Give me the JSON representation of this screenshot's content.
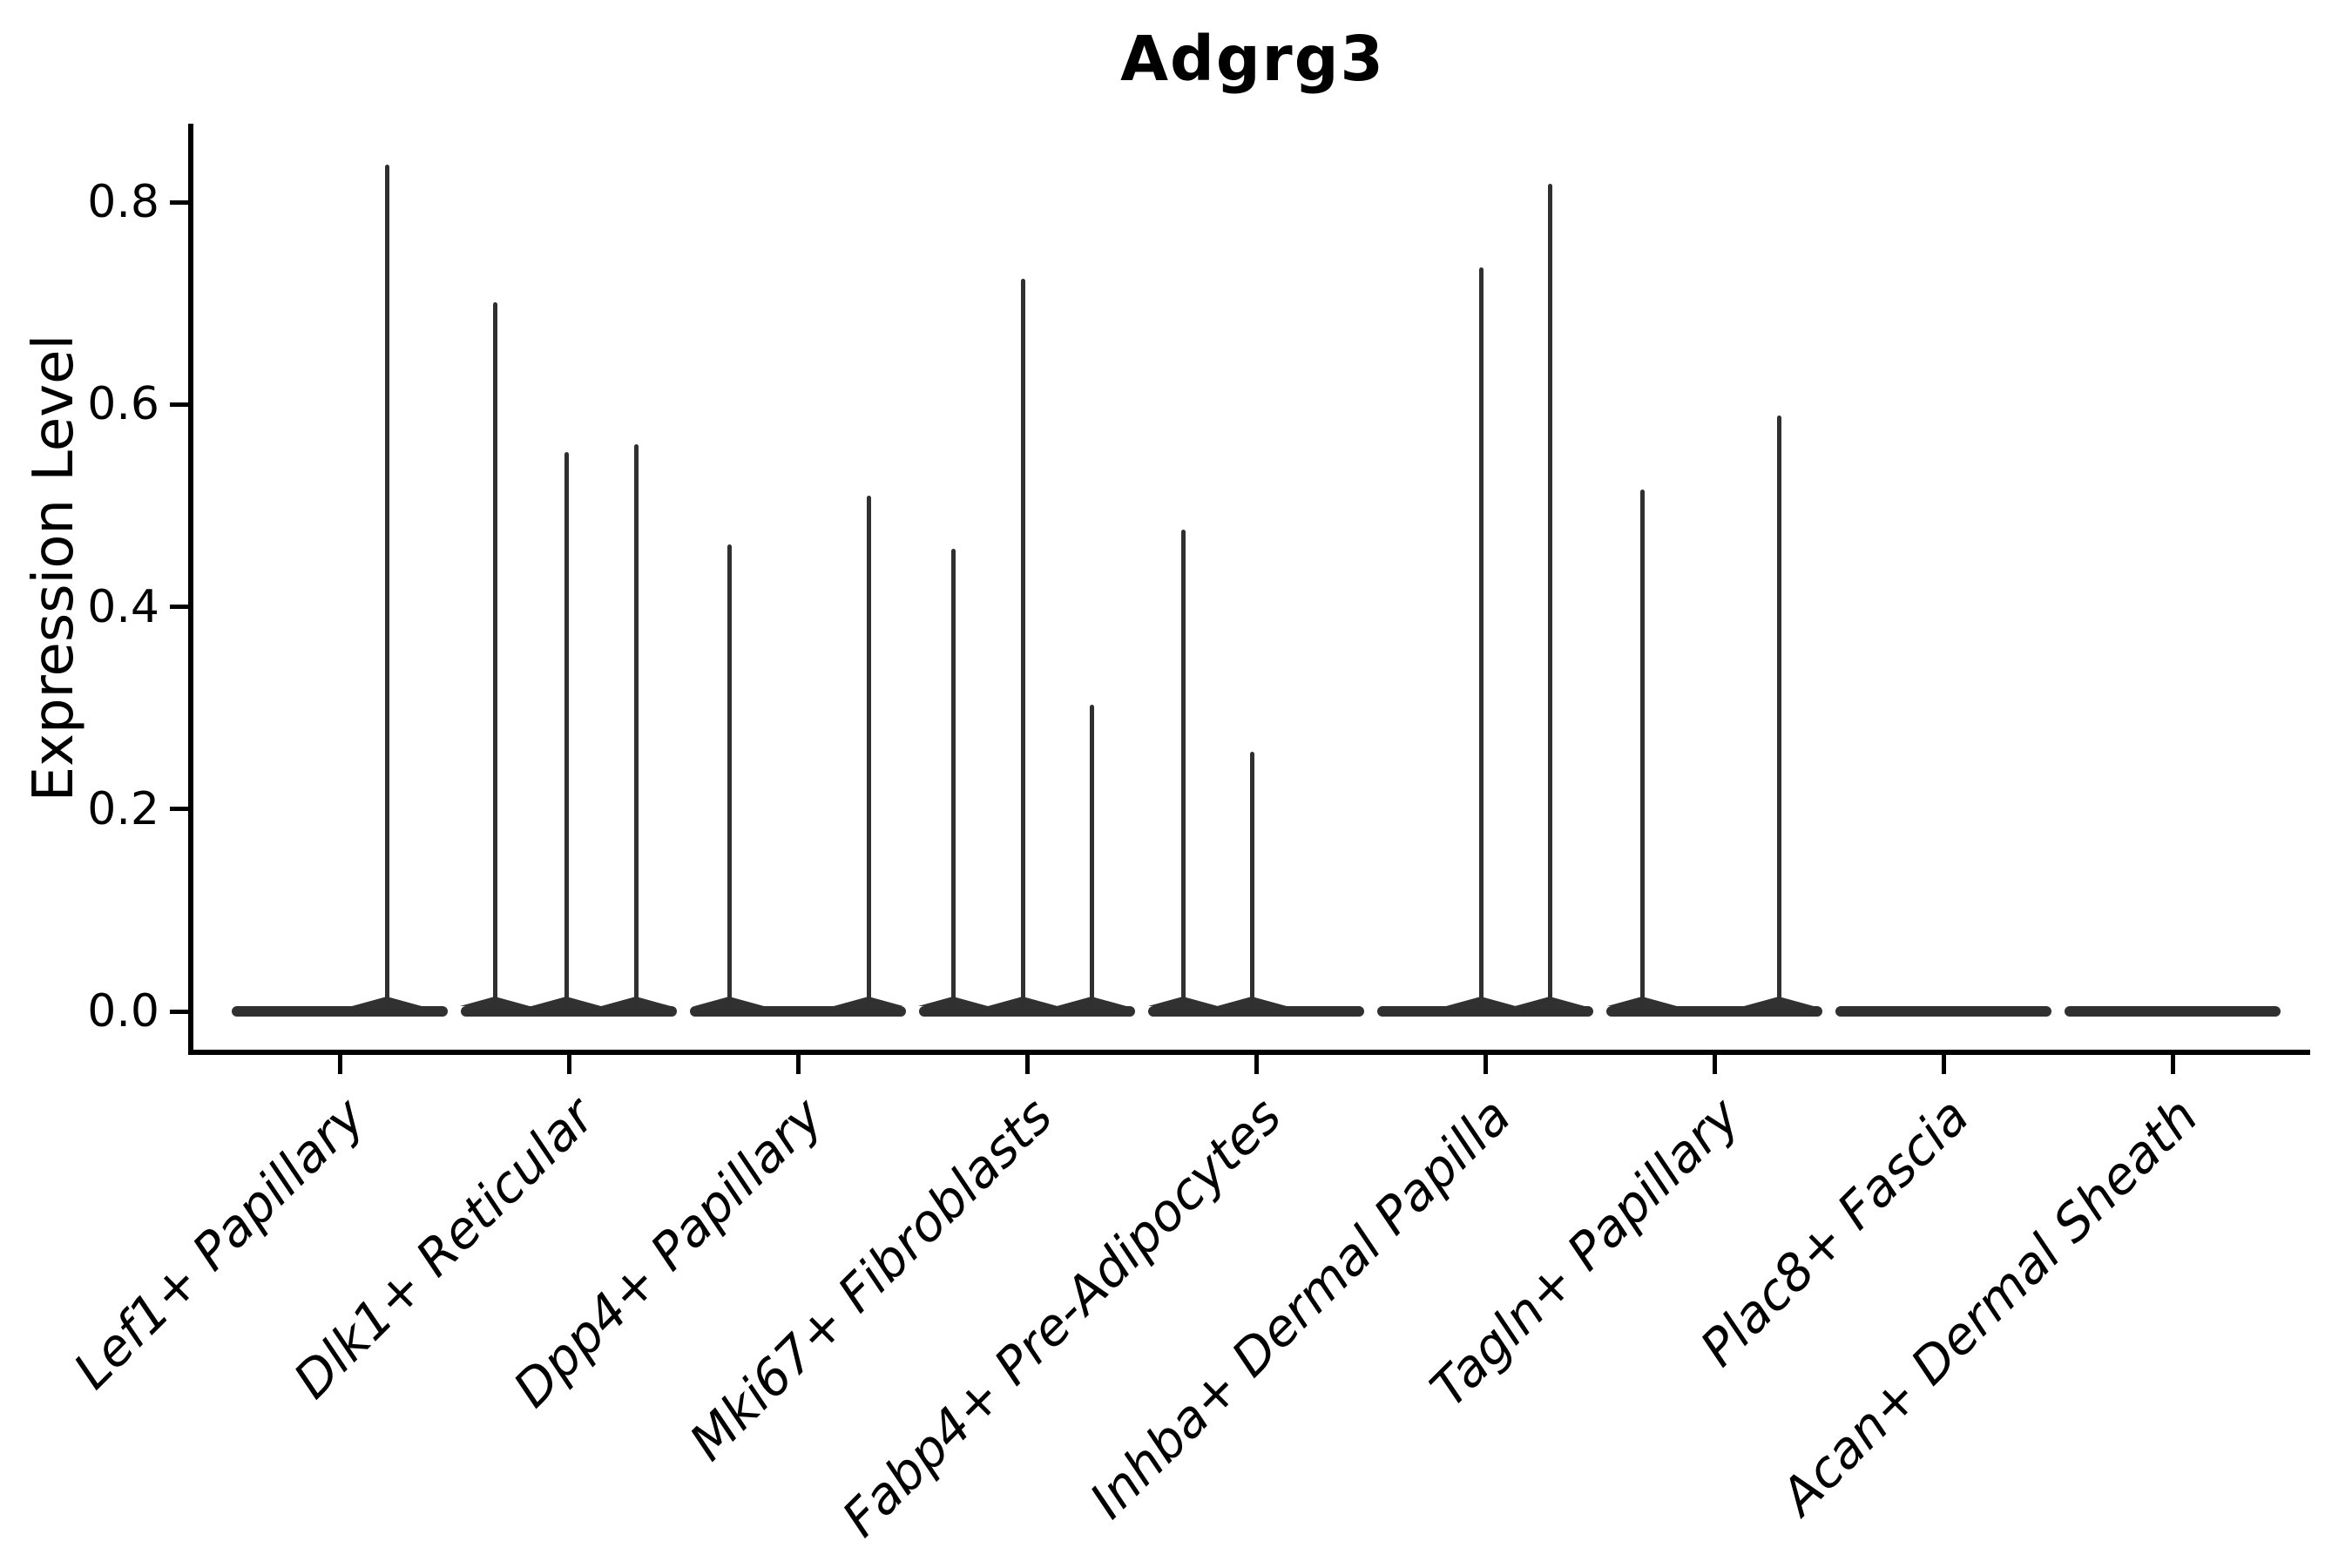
{
  "title": "Adgrg3",
  "y_axis": {
    "label": "Expression Level",
    "tick_labels": [
      "0.0",
      "0.2",
      "0.4",
      "0.6",
      "0.8"
    ]
  },
  "x_axis": {
    "tick_labels": [
      "Lef1+ Papillary",
      "Dlk1+ Reticular",
      "Dpp4+ Papillary",
      "Mki67+ Fibroblasts",
      "Fabp4+ Pre-Adipocytes",
      "Inhba+ Dermal Papilla",
      "Tagln+ Papillary",
      "Plac8+ Fascia",
      "Acan+ Dermal Sheath"
    ]
  },
  "chart_data": {
    "type": "violin",
    "title": "Adgrg3",
    "xlabel": "",
    "ylabel": "Expression Level",
    "ylim": [
      0,
      0.877
    ],
    "yticks": [
      0.0,
      0.2,
      0.4,
      0.6,
      0.8
    ],
    "grid": false,
    "legend": "none",
    "style": "thin-spike violins; bulk of cells at expression 0 (wide flat base), narrow spikes reaching each subpopulation maximum",
    "categories": [
      "Lef1+ Papillary",
      "Dlk1+ Reticular",
      "Dpp4+ Papillary",
      "Mki67+ Fibroblasts",
      "Fabp4+ Pre-Adipocytes",
      "Inhba+ Dermal Papilla",
      "Tagln+ Papillary",
      "Plac8+ Fascia",
      "Acan+ Dermal Sheath"
    ],
    "violins": [
      {
        "category": "Lef1+ Papillary",
        "base_value": 0.0,
        "spikes": [
          {
            "dx": 54,
            "max_expression": 0.837
          }
        ]
      },
      {
        "category": "Dlk1+ Reticular",
        "base_value": 0.0,
        "spikes": [
          {
            "dx": -85,
            "max_expression": 0.701
          },
          {
            "dx": -3,
            "max_expression": 0.553
          },
          {
            "dx": 77,
            "max_expression": 0.561
          }
        ]
      },
      {
        "category": "Dpp4+ Papillary",
        "base_value": 0.0,
        "spikes": [
          {
            "dx": -79,
            "max_expression": 0.462
          },
          {
            "dx": 81,
            "max_expression": 0.51
          }
        ]
      },
      {
        "category": "Mki67+ Fibroblasts",
        "base_value": 0.0,
        "spikes": [
          {
            "dx": -85,
            "max_expression": 0.457
          },
          {
            "dx": -5,
            "max_expression": 0.724
          },
          {
            "dx": 74,
            "max_expression": 0.303
          }
        ]
      },
      {
        "category": "Fabp4+ Pre-Adipocytes",
        "base_value": 0.0,
        "spikes": [
          {
            "dx": -84,
            "max_expression": 0.476
          },
          {
            "dx": -5,
            "max_expression": 0.257
          }
        ]
      },
      {
        "category": "Inhba+ Dermal Papilla",
        "base_value": 0.0,
        "spikes": [
          {
            "dx": -5,
            "max_expression": 0.735
          },
          {
            "dx": 74,
            "max_expression": 0.818
          }
        ]
      },
      {
        "category": "Tagln+ Papillary",
        "base_value": 0.0,
        "spikes": [
          {
            "dx": -83,
            "max_expression": 0.516
          },
          {
            "dx": 74,
            "max_expression": 0.589
          }
        ]
      },
      {
        "category": "Plac8+ Fascia",
        "base_value": 0.0,
        "spikes": []
      },
      {
        "category": "Acan+ Dermal Sheath",
        "base_value": 0.0,
        "spikes": []
      }
    ],
    "colors": {
      "violin": "#303030",
      "axis": "#000000",
      "text": "#000000",
      "background": "#ffffff"
    }
  }
}
